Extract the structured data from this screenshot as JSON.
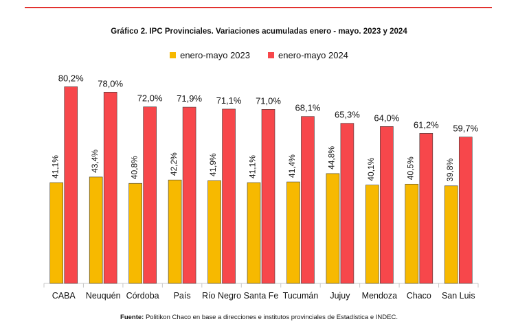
{
  "title": "Gráfico 2. IPC Provinciales. Variaciones acumuladas enero - mayo. 2023 y 2024",
  "source_label": "Fuente:",
  "source_text": " Politikon Chaco en base a direcciones e institutos provinciales de Estadística e INDEC.",
  "colors": {
    "accent": "#e2322f",
    "series_2023": "#f7b900",
    "series_2024": "#f7474b",
    "axis": "#c8c8c8"
  },
  "chart_data": {
    "type": "bar",
    "categories": [
      "CABA",
      "Neuquén",
      "Córdoba",
      "País",
      "Río Negro",
      "Santa Fe",
      "Tucumán",
      "Jujuy",
      "Mendoza",
      "Chaco",
      "San Luis"
    ],
    "series": [
      {
        "name": "enero-mayo 2023",
        "values": [
          41.1,
          43.4,
          40.8,
          42.2,
          41.9,
          41.1,
          41.4,
          44.8,
          40.1,
          40.5,
          39.8
        ],
        "labels": [
          "41,1%",
          "43,4%",
          "40,8%",
          "42,2%",
          "41,9%",
          "41,1%",
          "41,4%",
          "44,8%",
          "40,1%",
          "40,5%",
          "39,8%"
        ]
      },
      {
        "name": "enero-mayo 2024",
        "values": [
          80.2,
          78.0,
          72.0,
          71.9,
          71.1,
          71.0,
          68.1,
          65.3,
          64.0,
          61.2,
          59.7
        ],
        "labels": [
          "80,2%",
          "78,0%",
          "72,0%",
          "71,9%",
          "71,1%",
          "71,0%",
          "68,1%",
          "65,3%",
          "64,0%",
          "61,2%",
          "59,7%"
        ]
      }
    ],
    "ylim": [
      0,
      82
    ],
    "grid": false,
    "legend": "top"
  }
}
